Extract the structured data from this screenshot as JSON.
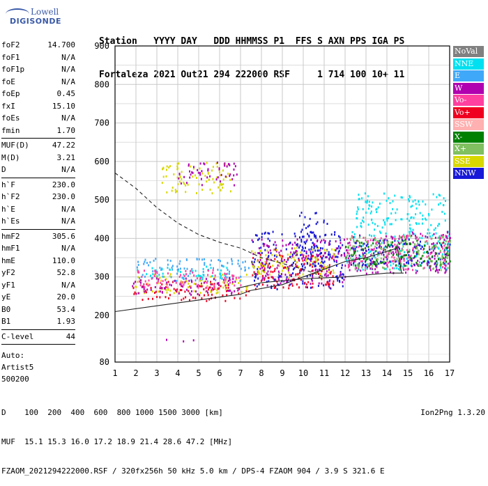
{
  "logo": {
    "line1": "Lowell",
    "line2": "DIGISONDE"
  },
  "header": {
    "line1": "Station   YYYY DAY   DDD HHMMSS P1  FFS S AXN PPS IGA PS",
    "line2": "Fortaleza 2021 Out21 294 222000 RSF     1 714 100 10+ 11"
  },
  "params": {
    "groups": [
      [
        [
          "foF2",
          "14.700"
        ],
        [
          "foF1",
          "N/A"
        ],
        [
          "foF1p",
          "N/A"
        ],
        [
          "foE",
          "N/A"
        ],
        [
          "foEp",
          "0.45"
        ],
        [
          "fxI",
          "15.10"
        ],
        [
          "foEs",
          "N/A"
        ],
        [
          "fmin",
          "1.70"
        ]
      ],
      [
        [
          "MUF(D)",
          "47.22"
        ],
        [
          "M(D)",
          "3.21"
        ],
        [
          "D",
          "N/A"
        ]
      ],
      [
        [
          "h`F",
          "230.0"
        ],
        [
          "h`F2",
          "230.0"
        ],
        [
          "h`E",
          "N/A"
        ],
        [
          "h`Es",
          "N/A"
        ]
      ],
      [
        [
          "hmF2",
          "305.6"
        ],
        [
          "hmF1",
          "N/A"
        ],
        [
          "hmE",
          "110.0"
        ],
        [
          "yF2",
          "52.8"
        ],
        [
          "yF1",
          "N/A"
        ],
        [
          "yE",
          "20.0"
        ],
        [
          "B0",
          "53.4"
        ],
        [
          "B1",
          "1.93"
        ]
      ],
      [
        [
          "C-level",
          "44"
        ]
      ]
    ],
    "auto_lines": [
      "Auto:",
      "Artist5",
      "500200"
    ]
  },
  "footer": {
    "line1": "D    100  200  400  600  800 1000 1500 3000 [km]",
    "line2": "MUF  15.1 15.3 16.0 17.2 18.9 21.4 28.6 47.2 [MHz]",
    "line3": "FZAOM_2021294222000.RSF / 320fx256h 50 kHz 5.0 km / DPS-4 FZAOM 904 / 3.9 S 321.6 E"
  },
  "version": "Ion2Png 1.3.20",
  "legend": [
    {
      "label": "NoVal",
      "color": "#808080"
    },
    {
      "label": "NNE",
      "color": "#00e0f0"
    },
    {
      "label": "E",
      "color": "#40a8f8"
    },
    {
      "label": "W",
      "color": "#b000b0"
    },
    {
      "label": "Vo-",
      "color": "#ff40a0"
    },
    {
      "label": "Vo+",
      "color": "#f00020"
    },
    {
      "label": "SSW",
      "color": "#ffb0b0"
    },
    {
      "label": "X-",
      "color": "#008000"
    },
    {
      "label": "X+",
      "color": "#80c060"
    },
    {
      "label": "SSE",
      "color": "#d8d800"
    },
    {
      "label": "NNW",
      "color": "#1818d8"
    }
  ],
  "chart_data": {
    "type": "scatter",
    "xlim": [
      1,
      17
    ],
    "ylim": [
      80,
      900
    ],
    "x_ticks": [
      1,
      2,
      3,
      4,
      5,
      6,
      7,
      8,
      9,
      10,
      11,
      12,
      13,
      14,
      15,
      16,
      17
    ],
    "y_ticks": [
      80,
      200,
      300,
      400,
      500,
      600,
      700,
      800,
      900
    ],
    "grid": true,
    "clusters": [
      {
        "x": [
          1.8,
          7.4
        ],
        "y": [
          240,
          290
        ],
        "color": "#f00020"
      },
      {
        "x": [
          1.8,
          7.4
        ],
        "y": [
          260,
          310
        ],
        "color": "#d8d800"
      },
      {
        "x": [
          2.0,
          7.4
        ],
        "y": [
          290,
          350
        ],
        "color": "#40a8f8"
      },
      {
        "x": [
          2.0,
          6.5
        ],
        "y": [
          300,
          330
        ],
        "color": "#00e0f0"
      },
      {
        "x": [
          1.8,
          7.0
        ],
        "y": [
          255,
          300
        ],
        "color": "#b000b0"
      },
      {
        "x": [
          2.0,
          7.0
        ],
        "y": [
          270,
          320
        ],
        "color": "#ff40a0"
      },
      {
        "x": [
          7.5,
          12.0
        ],
        "y": [
          270,
          420
        ],
        "color": "#1818d8"
      },
      {
        "x": [
          7.5,
          12.0
        ],
        "y": [
          280,
          400
        ],
        "color": "#b000b0"
      },
      {
        "x": [
          7.5,
          11.5
        ],
        "y": [
          270,
          360
        ],
        "color": "#f00020"
      },
      {
        "x": [
          7.5,
          11.5
        ],
        "y": [
          300,
          380
        ],
        "color": "#d8d800"
      },
      {
        "x": [
          9.8,
          11.2
        ],
        "y": [
          330,
          470
        ],
        "color": "#1818d8"
      },
      {
        "x": [
          12.0,
          17.0
        ],
        "y": [
          320,
          420
        ],
        "color": "#00e0f0"
      },
      {
        "x": [
          12.0,
          17.0
        ],
        "y": [
          310,
          420
        ],
        "color": "#b000b0"
      },
      {
        "x": [
          12.0,
          17.0
        ],
        "y": [
          320,
          410
        ],
        "color": "#ff40a0"
      },
      {
        "x": [
          12.0,
          17.0
        ],
        "y": [
          330,
          400
        ],
        "color": "#1818d8"
      },
      {
        "x": [
          12.0,
          17.0
        ],
        "y": [
          330,
          400
        ],
        "color": "#008000"
      },
      {
        "x": [
          12.0,
          17.0
        ],
        "y": [
          320,
          410
        ],
        "color": "#80c060"
      },
      {
        "x": [
          12.5,
          16.8
        ],
        "y": [
          420,
          520
        ],
        "color": "#00e0f0"
      },
      {
        "x": [
          2.9,
          4.8
        ],
        "y": [
          135,
          140
        ],
        "color": "#b000b0"
      },
      {
        "x": [
          3.2,
          6.5
        ],
        "y": [
          520,
          600
        ],
        "color": "#d8d800"
      },
      {
        "x": [
          4.0,
          6.8
        ],
        "y": [
          540,
          600
        ],
        "color": "#b000b0"
      }
    ],
    "curves": [
      {
        "style": "solid",
        "points": [
          [
            1,
            210
          ],
          [
            3,
            225
          ],
          [
            5,
            240
          ],
          [
            7,
            255
          ],
          [
            7.5,
            265
          ],
          [
            9,
            280
          ],
          [
            10,
            300
          ],
          [
            11,
            320
          ],
          [
            12,
            340
          ],
          [
            13,
            350
          ],
          [
            14.5,
            375
          ],
          [
            14.7,
            310
          ]
        ]
      },
      {
        "style": "solid",
        "points": [
          [
            6.8,
            270
          ],
          [
            8,
            285
          ],
          [
            10,
            295
          ],
          [
            12,
            300
          ],
          [
            14,
            310
          ],
          [
            14.8,
            310
          ]
        ]
      },
      {
        "style": "dashed",
        "points": [
          [
            1,
            570
          ],
          [
            2,
            530
          ],
          [
            3,
            480
          ],
          [
            4,
            440
          ],
          [
            5,
            410
          ],
          [
            6,
            390
          ],
          [
            7,
            375
          ],
          [
            8,
            350
          ],
          [
            9,
            335
          ],
          [
            10,
            320
          ],
          [
            11,
            300
          ]
        ]
      }
    ]
  }
}
